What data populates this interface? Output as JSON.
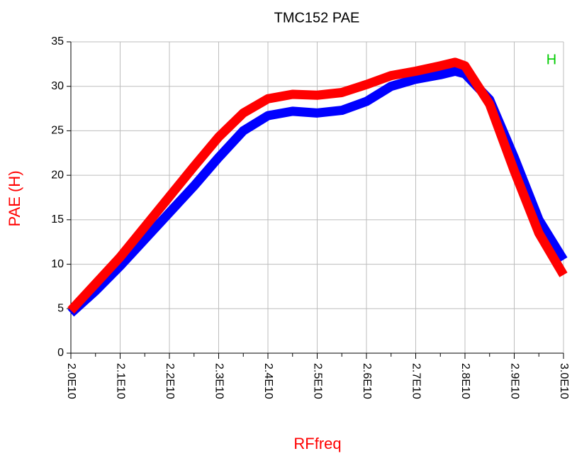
{
  "chart_data": {
    "type": "line",
    "title": "TMC152 PAE",
    "x_label": "RFfreq",
    "y_label": "PAE  (H)",
    "annotation": "H",
    "x": [
      20000000000,
      20500000000,
      21000000000,
      21500000000,
      22000000000,
      22500000000,
      23000000000,
      23500000000,
      24000000000,
      24500000000,
      25000000000,
      25500000000,
      26000000000,
      26500000000,
      27000000000,
      27500000000,
      27800000000,
      28000000000,
      28500000000,
      29000000000,
      29500000000,
      30000000000
    ],
    "series": [
      {
        "color": "#0000ff",
        "values": [
          4.5,
          7.0,
          9.8,
          12.8,
          15.8,
          18.8,
          22.0,
          25.0,
          26.7,
          27.2,
          27.0,
          27.3,
          28.3,
          30.0,
          30.8,
          31.3,
          31.7,
          31.4,
          28.5,
          22.0,
          15.0,
          10.5
        ]
      },
      {
        "color": "#ff0000",
        "values": [
          4.8,
          7.8,
          10.8,
          14.2,
          17.6,
          21.0,
          24.3,
          27.0,
          28.6,
          29.1,
          29.0,
          29.3,
          30.2,
          31.2,
          31.7,
          32.3,
          32.7,
          32.3,
          28.0,
          20.5,
          13.5,
          8.8
        ]
      }
    ],
    "xlim": [
      20000000000,
      30000000000
    ],
    "ylim": [
      0,
      35
    ],
    "xticks": [
      {
        "value": 20000000000,
        "label": "2.0E10"
      },
      {
        "value": 21000000000,
        "label": "2.1E10"
      },
      {
        "value": 22000000000,
        "label": "2.2E10"
      },
      {
        "value": 23000000000,
        "label": "2.3E10"
      },
      {
        "value": 24000000000,
        "label": "2.4E10"
      },
      {
        "value": 25000000000,
        "label": "2.5E10"
      },
      {
        "value": 26000000000,
        "label": "2.6E10"
      },
      {
        "value": 27000000000,
        "label": "2.7E10"
      },
      {
        "value": 28000000000,
        "label": "2.8E10"
      },
      {
        "value": 29000000000,
        "label": "2.9E10"
      },
      {
        "value": 30000000000,
        "label": "3.0E10"
      }
    ],
    "xminorticks": [
      20500000000,
      21500000000,
      22500000000,
      23500000000,
      24500000000,
      25500000000,
      26500000000,
      27500000000,
      28500000000,
      29500000000
    ],
    "yticks": [
      0,
      5,
      10,
      15,
      20,
      25,
      30,
      35
    ],
    "grid": true
  }
}
